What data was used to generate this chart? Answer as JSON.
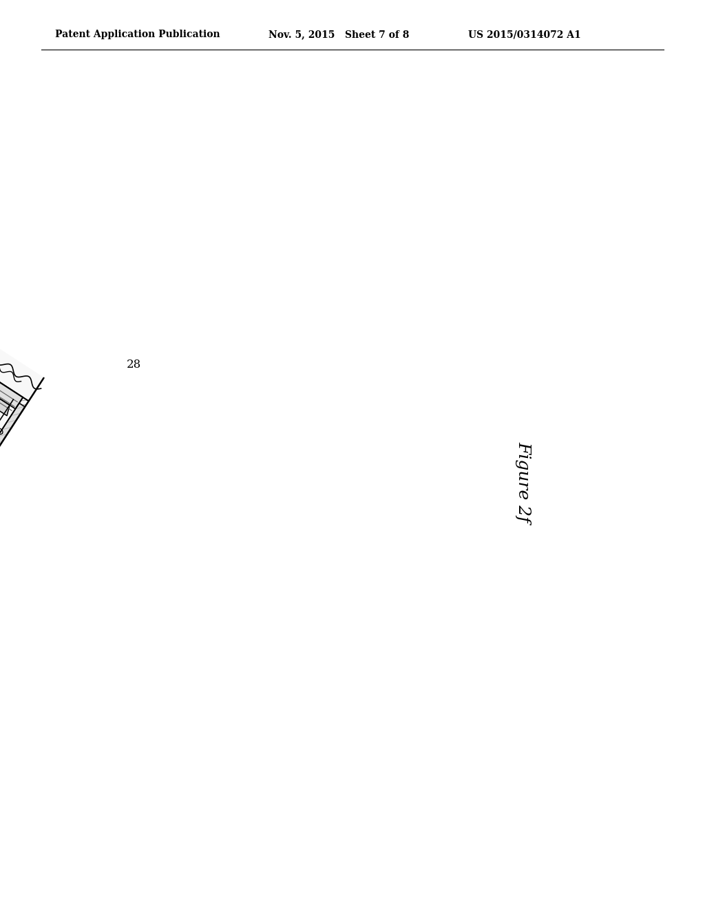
{
  "bg_color": "#ffffff",
  "header_left": "Patent Application Publication",
  "header_center": "Nov. 5, 2015   Sheet 7 of 8",
  "header_right": "US 2015/0314072 A1",
  "figure_label": "Figure 2f",
  "callout_label": "28",
  "header_fontsize": 10,
  "figure_label_fontsize": 18
}
